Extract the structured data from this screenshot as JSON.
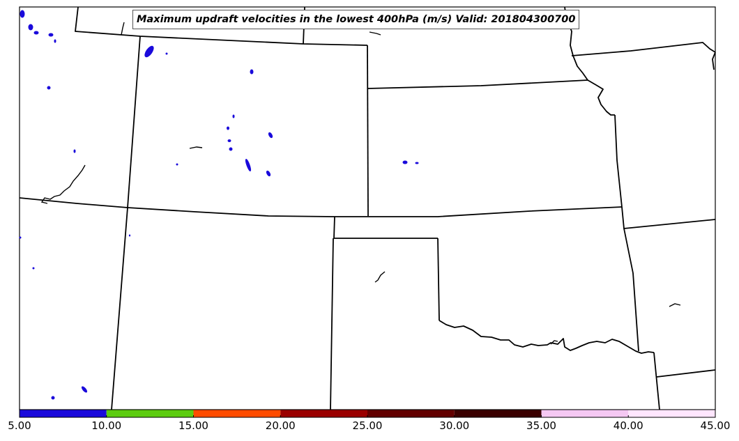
{
  "title": "Maximum updraft velocities in the lowest 400hPa (m/s) Valid: 201804300700",
  "colorbar": {
    "bins": [
      {
        "from": 5,
        "to": 10,
        "color": "#1a0adb"
      },
      {
        "from": 10,
        "to": 15,
        "color": "#5ccc10"
      },
      {
        "from": 15,
        "to": 20,
        "color": "#ff4c00"
      },
      {
        "from": 20,
        "to": 25,
        "color": "#9a0000"
      },
      {
        "from": 25,
        "to": 30,
        "color": "#620000"
      },
      {
        "from": 30,
        "to": 35,
        "color": "#3a0000"
      },
      {
        "from": 35,
        "to": 40,
        "color": "#f5c8f3"
      },
      {
        "from": 40,
        "to": 45,
        "color": "#ffe6fe"
      }
    ],
    "tick_labels": [
      "5.00",
      "10.00",
      "15.00",
      "20.00",
      "25.00",
      "30.00",
      "35.00",
      "40.00",
      "45.00"
    ]
  },
  "legend_colors": {
    "updraft_5_10": "#1a0adb",
    "boundary": "#000000"
  }
}
